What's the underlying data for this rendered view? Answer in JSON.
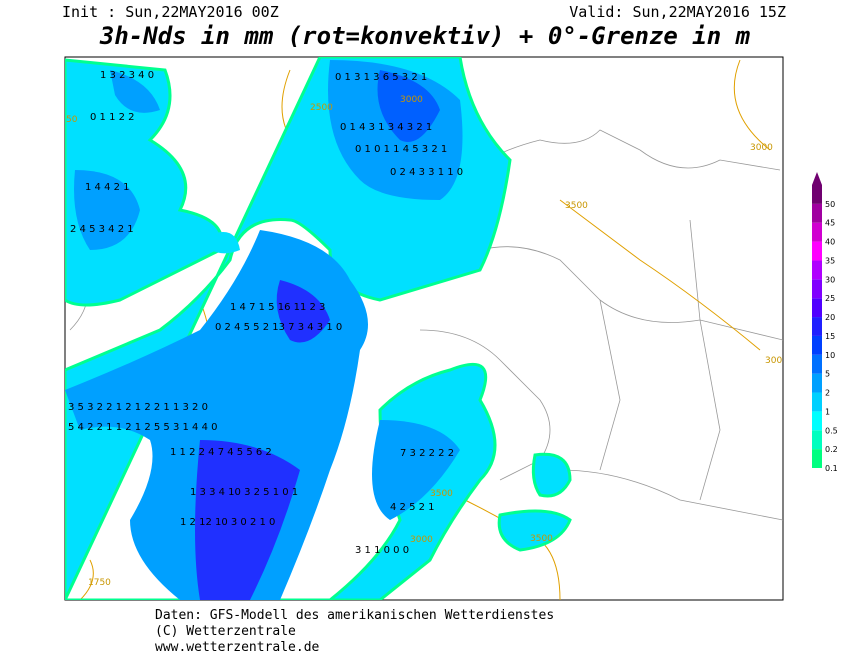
{
  "header": {
    "init": "Init : Sun,22MAY2016 00Z",
    "valid": "Valid: Sun,22MAY2016 15Z",
    "title": "3h-Nds in mm (rot=konvektiv) + 0°-Grenze in m"
  },
  "legend": {
    "levels": [
      0.1,
      0.2,
      0.5,
      1,
      2,
      5,
      10,
      15,
      20,
      25,
      30,
      35,
      40,
      45,
      50
    ],
    "colors": [
      "#00ff80",
      "#00ffbf",
      "#00ffff",
      "#00d0ff",
      "#00a0ff",
      "#0070ff",
      "#0040ff",
      "#2020ff",
      "#5000ff",
      "#8000ff",
      "#b000ff",
      "#ff00ff",
      "#d000d0",
      "#a000a0",
      "#700070"
    ]
  },
  "contours": [
    "2500",
    "3000",
    "3000",
    "3500",
    "300",
    "3500",
    "3000",
    "3500",
    "50",
    "1750"
  ],
  "digits": [
    "1 3 2 3 4 0",
    "0 1 1 2 2",
    "1 4 4 2 1",
    "2 4 5 3 4 2 1",
    "0 1 3 1 3 6 5 3 2 1",
    "0 1 4 3 1 3 4 3 2 1",
    "0 1 0 1 1 4 5 3 2 1",
    "0 2 4 3 3 1 1 0",
    "1 4 7 1 5 16 11 2 3",
    "0 2 4 5 5 2 13 7 3 4 3 1 0",
    "3 5 3 2 2 1 2 1 2 2 1 1 3 2 0",
    "5 4 2 2 1 1 2 1 2 5 5 3 1 4 4 0",
    "1 1 2 2 4 7 4 5 5 6 2",
    "1 3 3 4 10 3 2 5 1 0 1",
    "7 3 2 2 2 2",
    "1 2 12 10 3 0 2 1 0",
    "4 2 5 2 1",
    "3 1 1 0 0 0"
  ],
  "footer": {
    "line1": "Daten: GFS-Modell des amerikanischen Wetterdienstes",
    "line2": "(C) Wetterzentrale",
    "line3": "www.wetterzentrale.de"
  }
}
